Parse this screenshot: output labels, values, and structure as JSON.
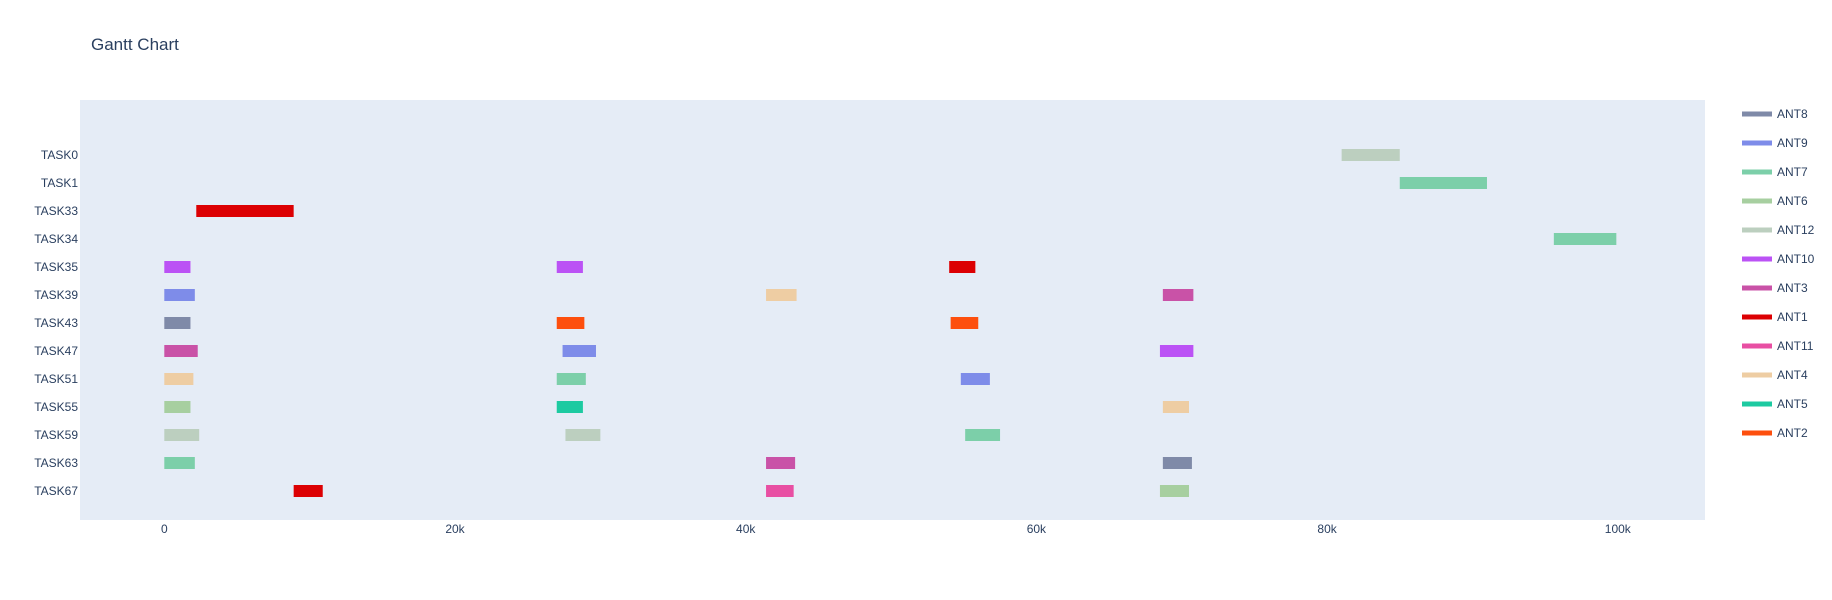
{
  "chart_data": {
    "type": "gantt",
    "title": "Gantt Chart",
    "xlabel": "",
    "ylabel": "",
    "xlim": [
      -5800,
      106000
    ],
    "x_ticks": [
      0,
      20000,
      40000,
      60000,
      80000,
      100000
    ],
    "x_tick_labels": [
      "0",
      "20k",
      "40k",
      "60k",
      "80k",
      "100k"
    ],
    "tasks": [
      "TASK0",
      "TASK1",
      "TASK33",
      "TASK34",
      "TASK35",
      "TASK39",
      "TASK43",
      "TASK47",
      "TASK51",
      "TASK55",
      "TASK59",
      "TASK63",
      "TASK67"
    ],
    "grid": false,
    "legend_position": "right",
    "series": [
      {
        "name": "ANT8",
        "color": "#7f8aa8",
        "bars": [
          {
            "task": "TASK43",
            "start": 0,
            "end": 1800
          },
          {
            "task": "TASK63",
            "start": 68700,
            "end": 70700
          }
        ]
      },
      {
        "name": "ANT9",
        "color": "#7e8ce9",
        "bars": [
          {
            "task": "TASK39",
            "start": 0,
            "end": 2100
          },
          {
            "task": "TASK47",
            "start": 27400,
            "end": 29700
          },
          {
            "task": "TASK51",
            "start": 54800,
            "end": 56800
          }
        ]
      },
      {
        "name": "ANT7",
        "color": "#7ccfa9",
        "bars": [
          {
            "task": "TASK1",
            "start": 85000,
            "end": 91000
          },
          {
            "task": "TASK34",
            "start": 95600,
            "end": 99900
          },
          {
            "task": "TASK51",
            "start": 27000,
            "end": 29000
          },
          {
            "task": "TASK59",
            "start": 55100,
            "end": 57500
          },
          {
            "task": "TASK63",
            "start": 0,
            "end": 2100
          }
        ]
      },
      {
        "name": "ANT6",
        "color": "#a7cfa0",
        "bars": [
          {
            "task": "TASK55",
            "start": 0,
            "end": 1800
          },
          {
            "task": "TASK67",
            "start": 68500,
            "end": 70500
          }
        ]
      },
      {
        "name": "ANT12",
        "color": "#bccfbf",
        "bars": [
          {
            "task": "TASK0",
            "start": 81000,
            "end": 85000
          },
          {
            "task": "TASK59",
            "start": 0,
            "end": 2400
          },
          {
            "task": "TASK59",
            "start": 27600,
            "end": 30000
          }
        ]
      },
      {
        "name": "ANT10",
        "color": "#bb52f5",
        "bars": [
          {
            "task": "TASK35",
            "start": 0,
            "end": 1800
          },
          {
            "task": "TASK35",
            "start": 27000,
            "end": 28800
          },
          {
            "task": "TASK47",
            "start": 68500,
            "end": 70800
          }
        ]
      },
      {
        "name": "ANT3",
        "color": "#c952a7",
        "bars": [
          {
            "task": "TASK39",
            "start": 68700,
            "end": 70800
          },
          {
            "task": "TASK47",
            "start": 0,
            "end": 2300
          },
          {
            "task": "TASK63",
            "start": 41400,
            "end": 43400
          }
        ]
      },
      {
        "name": "ANT1",
        "color": "#dc0003",
        "bars": [
          {
            "task": "TASK33",
            "start": 2200,
            "end": 8900
          },
          {
            "task": "TASK35",
            "start": 54000,
            "end": 55800
          },
          {
            "task": "TASK67",
            "start": 8900,
            "end": 10900
          }
        ]
      },
      {
        "name": "ANT11",
        "color": "#e84fa3",
        "bars": [
          {
            "task": "TASK67",
            "start": 41400,
            "end": 43300
          }
        ]
      },
      {
        "name": "ANT4",
        "color": "#eecda3",
        "bars": [
          {
            "task": "TASK39",
            "start": 41400,
            "end": 43500
          },
          {
            "task": "TASK51",
            "start": 0,
            "end": 2000
          },
          {
            "task": "TASK55",
            "start": 68700,
            "end": 70500
          }
        ]
      },
      {
        "name": "ANT5",
        "color": "#1dcaa1",
        "bars": [
          {
            "task": "TASK55",
            "start": 27000,
            "end": 28800
          }
        ]
      },
      {
        "name": "ANT2",
        "color": "#fd4f0e",
        "bars": [
          {
            "task": "TASK43",
            "start": 27000,
            "end": 28900
          },
          {
            "task": "TASK43",
            "start": 54100,
            "end": 56000
          }
        ]
      }
    ]
  }
}
